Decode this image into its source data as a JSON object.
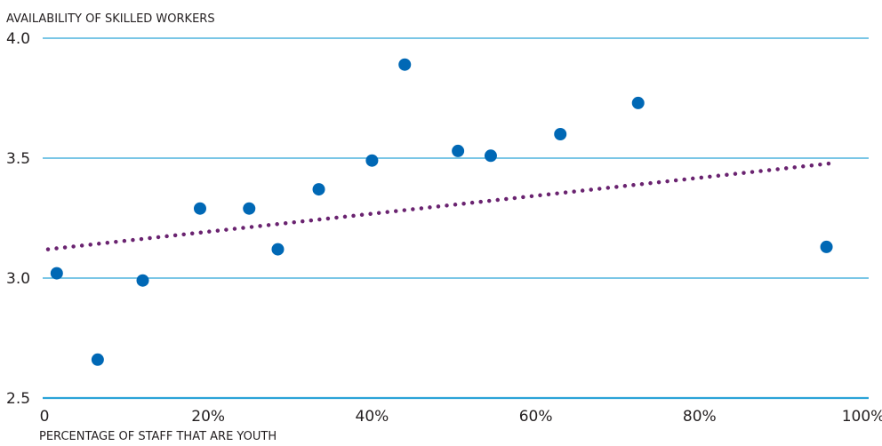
{
  "chart_data": {
    "type": "scatter",
    "ylabel": "AVAILABILITY OF SKILLED WORKERS",
    "xlabel": "PERCENTAGE OF STAFF THAT ARE YOUTH",
    "xlim": [
      0,
      100
    ],
    "ylim": [
      2.5,
      4.0
    ],
    "x_ticks": [
      {
        "value": 0,
        "label": "0"
      },
      {
        "value": 20,
        "label": "20%"
      },
      {
        "value": 40,
        "label": "40%"
      },
      {
        "value": 60,
        "label": "60%"
      },
      {
        "value": 80,
        "label": "80%"
      },
      {
        "value": 100,
        "label": "100%"
      }
    ],
    "y_ticks": [
      {
        "value": 2.5,
        "label": "2.5"
      },
      {
        "value": 3.0,
        "label": "3.0"
      },
      {
        "value": 3.5,
        "label": "3.5"
      },
      {
        "value": 4.0,
        "label": "4.0"
      }
    ],
    "grid": "horizontal",
    "points": [
      {
        "x": 1.5,
        "y": 3.02
      },
      {
        "x": 6.5,
        "y": 2.66
      },
      {
        "x": 12.0,
        "y": 2.99
      },
      {
        "x": 19.0,
        "y": 3.29
      },
      {
        "x": 25.0,
        "y": 3.29
      },
      {
        "x": 28.5,
        "y": 3.12
      },
      {
        "x": 33.5,
        "y": 3.37
      },
      {
        "x": 40.0,
        "y": 3.49
      },
      {
        "x": 44.0,
        "y": 3.89
      },
      {
        "x": 50.5,
        "y": 3.53
      },
      {
        "x": 54.5,
        "y": 3.51
      },
      {
        "x": 63.0,
        "y": 3.6
      },
      {
        "x": 72.5,
        "y": 3.73
      },
      {
        "x": 95.5,
        "y": 3.13
      }
    ],
    "trendline": {
      "x": [
        0,
        96.5
      ],
      "y": [
        3.12,
        3.48
      ]
    },
    "colors": {
      "points": "#0068b5",
      "trendline": "#6a2370",
      "grid": "#2aa3d8",
      "baseline": "#2aa3d8"
    }
  }
}
